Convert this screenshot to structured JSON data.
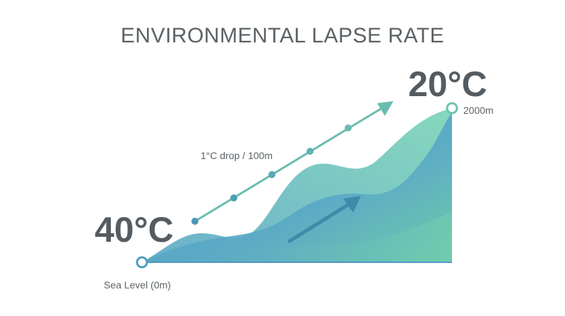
{
  "title": "ENVIRONMENTAL LAPSE RATE",
  "top": {
    "temperature": "20°C",
    "altitude": "2000m"
  },
  "bottom": {
    "temperature": "40°C",
    "altitude": "Sea Level (0m)"
  },
  "rate_label": "1°C drop / 100m",
  "colors": {
    "text": "#555c61",
    "teal_light": "#7fd3bd",
    "teal_dark": "#5aa8c9",
    "arrow": "#6bbcb0",
    "marker_ring": "#6cc2b3"
  }
}
